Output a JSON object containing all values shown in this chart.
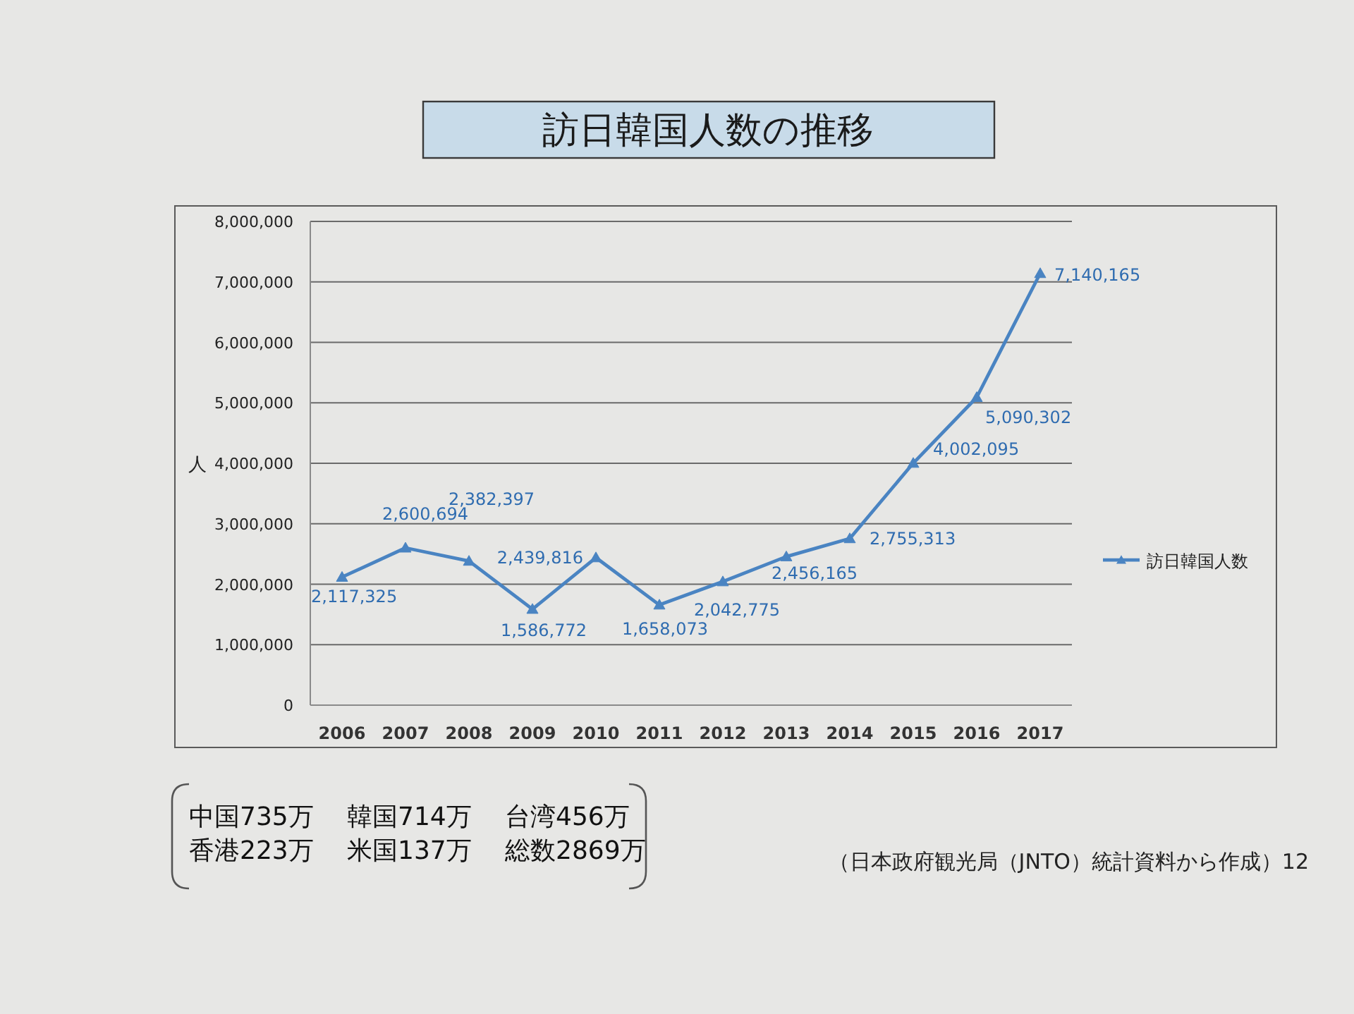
{
  "chart_data": {
    "type": "line",
    "title": "訪日韓国人数の推移",
    "ylabel": "人",
    "categories": [
      "2006",
      "2007",
      "2008",
      "2009",
      "2010",
      "2011",
      "2012",
      "2013",
      "2014",
      "2015",
      "2016",
      "2017"
    ],
    "series": [
      {
        "name": "訪日韓国人数",
        "color": "#4a84c2",
        "values": [
          2117325,
          2600694,
          2382397,
          1586772,
          2439816,
          1658073,
          2042775,
          2456165,
          2755313,
          4002095,
          5090302,
          7140165
        ],
        "value_labels": [
          "2,117,325",
          "2,600,694",
          "2,382,397",
          "1,586,772",
          "2,439,816",
          "1,658,073",
          "2,042,775",
          "2,456,165",
          "2,755,313",
          "4,002,095",
          "5,090,302",
          "7,140,165"
        ]
      }
    ],
    "ylim": [
      0,
      8000000
    ],
    "yticks": [
      0,
      {
        "value": 1000000,
        "label": "1,000,000"
      },
      {
        "value": 2000000,
        "label": "2,000,000"
      },
      {
        "value": 3000000,
        "label": "3,000,000"
      },
      {
        "value": 4000000,
        "label": "4,000,000"
      },
      {
        "value": 5000000,
        "label": "5,000,000"
      },
      {
        "value": 6000000,
        "label": "6,000,000"
      },
      {
        "value": 7000000,
        "label": "7,000,000"
      },
      {
        "value": 8000000,
        "label": "8,000,000"
      }
    ],
    "grid": "y",
    "legend": "right",
    "marker": "triangle",
    "line_style": "solid",
    "annotations": [
      "中国735万",
      "韓国714万",
      "台湾456万",
      "香港223万",
      "米国137万",
      "総数2869万",
      "（日本政府観光局（JNTO）統計資料から作成）12"
    ]
  }
}
